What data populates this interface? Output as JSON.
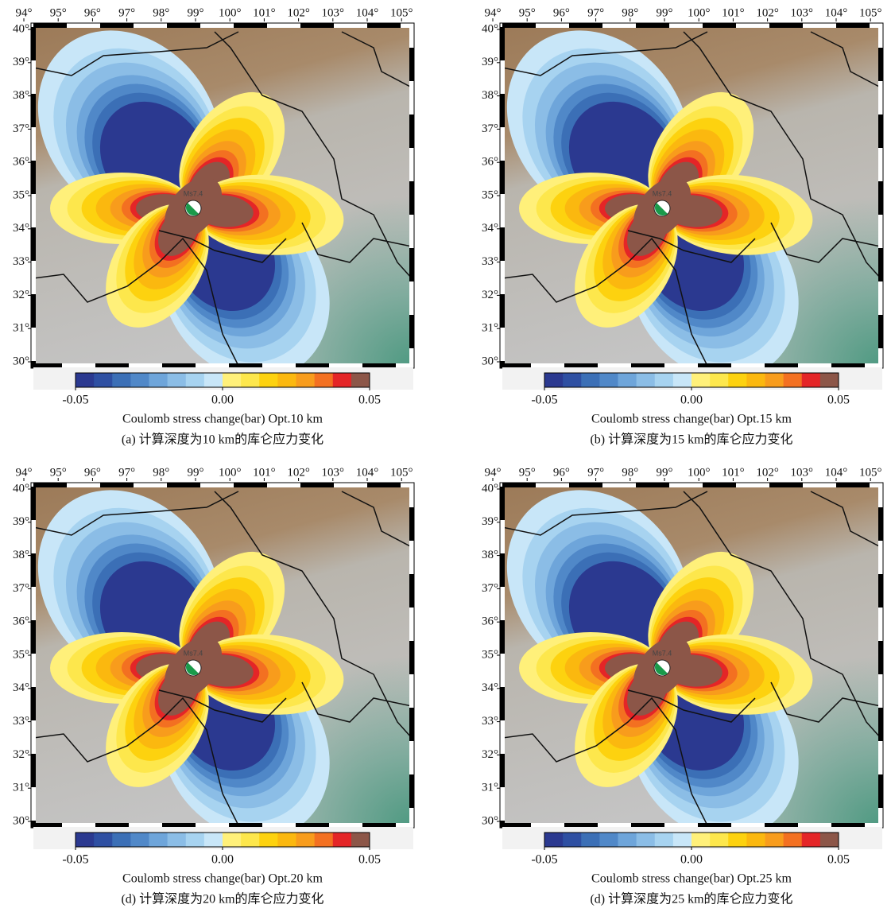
{
  "colors": [
    "#2b3990",
    "#2e4fa2",
    "#3b6fb6",
    "#5088c8",
    "#6ea5da",
    "#8bbde6",
    "#a7d3f0",
    "#c8e6f8",
    "#fff07a",
    "#fde74c",
    "#fdd20f",
    "#fbb80f",
    "#f89c1c",
    "#f37021",
    "#e42527",
    "#8c5648"
  ],
  "panels": [
    {
      "xticks": [
        {
          "value": 94,
          "label": "94°"
        },
        {
          "value": 95,
          "label": "95°"
        },
        {
          "value": 96,
          "label": "96°"
        },
        {
          "value": 97,
          "label": "97°"
        },
        {
          "value": 98,
          "label": "98°"
        },
        {
          "value": 99,
          "label": "99°"
        },
        {
          "value": 100,
          "label": "100°"
        },
        {
          "value": 101,
          "label": "101°"
        },
        {
          "value": 102,
          "label": "102°"
        },
        {
          "value": 103,
          "label": "103°"
        },
        {
          "value": 104,
          "label": "104°"
        },
        {
          "value": 105,
          "label": "105°"
        }
      ],
      "yticks": [
        {
          "value": 40,
          "label": "40°"
        },
        {
          "value": 39,
          "label": "39°"
        },
        {
          "value": 38,
          "label": "38°"
        },
        {
          "value": 37,
          "label": "37°"
        },
        {
          "value": 36,
          "label": "36°"
        },
        {
          "value": 35,
          "label": "35°"
        },
        {
          "value": 34,
          "label": "34°"
        },
        {
          "value": 33,
          "label": "33°"
        },
        {
          "value": 32,
          "label": "32°"
        },
        {
          "value": 31,
          "label": "31°"
        },
        {
          "value": 30,
          "label": "30°"
        }
      ],
      "event_label": "Ms7.4",
      "colorbar": {
        "clim": [
          -0.05,
          0.05
        ],
        "ticks": [
          -0.05,
          {
            "value": 0,
            "label": "0.00"
          },
          0.05
        ],
        "label": "Coulomb stress change(bar) Opt.10 km"
      },
      "caption": "(a) 计算深度为10 km的库仑应力变化"
    },
    {
      "xticks": [
        {
          "value": 94,
          "label": "94°"
        },
        {
          "value": 95,
          "label": "95°"
        },
        {
          "value": 96,
          "label": "96°"
        },
        {
          "value": 97,
          "label": "97°"
        },
        {
          "value": 98,
          "label": "98°"
        },
        {
          "value": 99,
          "label": "99°"
        },
        {
          "value": 100,
          "label": "100°"
        },
        {
          "value": 101,
          "label": "101°"
        },
        {
          "value": 102,
          "label": "102°"
        },
        {
          "value": 103,
          "label": "103°"
        },
        {
          "value": 104,
          "label": "104°"
        },
        {
          "value": 105,
          "label": "105°"
        }
      ],
      "yticks": [
        {
          "value": 40,
          "label": "40°"
        },
        {
          "value": 39,
          "label": "39°"
        },
        {
          "value": 38,
          "label": "38°"
        },
        {
          "value": 37,
          "label": "37°"
        },
        {
          "value": 36,
          "label": "36°"
        },
        {
          "value": 35,
          "label": "35°"
        },
        {
          "value": 34,
          "label": "34°"
        },
        {
          "value": 33,
          "label": "33°"
        },
        {
          "value": 32,
          "label": "32°"
        },
        {
          "value": 31,
          "label": "31°"
        },
        {
          "value": 30,
          "label": "30°"
        }
      ],
      "event_label": "Ms7.4",
      "colorbar": {
        "clim": [
          -0.05,
          0.05
        ],
        "ticks": [
          -0.05,
          {
            "value": 0,
            "label": "0.00"
          },
          0.05
        ],
        "label": "Coulomb stress change(bar) Opt.15 km"
      },
      "caption": "(b) 计算深度为15 km的库仑应力变化"
    },
    {
      "xticks": [
        {
          "value": 94,
          "label": "94°"
        },
        {
          "value": 95,
          "label": "95°"
        },
        {
          "value": 96,
          "label": "96°"
        },
        {
          "value": 97,
          "label": "97°"
        },
        {
          "value": 98,
          "label": "98°"
        },
        {
          "value": 99,
          "label": "99°"
        },
        {
          "value": 100,
          "label": "100°"
        },
        {
          "value": 101,
          "label": "101°"
        },
        {
          "value": 102,
          "label": "102°"
        },
        {
          "value": 103,
          "label": "103°"
        },
        {
          "value": 104,
          "label": "104°"
        },
        {
          "value": 105,
          "label": "105°"
        }
      ],
      "yticks": [
        {
          "value": 40,
          "label": "40°"
        },
        {
          "value": 39,
          "label": "39°"
        },
        {
          "value": 38,
          "label": "38°"
        },
        {
          "value": 37,
          "label": "37°"
        },
        {
          "value": 36,
          "label": "36°"
        },
        {
          "value": 35,
          "label": "35°"
        },
        {
          "value": 34,
          "label": "34°"
        },
        {
          "value": 33,
          "label": "33°"
        },
        {
          "value": 32,
          "label": "32°"
        },
        {
          "value": 31,
          "label": "31°"
        },
        {
          "value": 30,
          "label": "30°"
        }
      ],
      "event_label": "Ms7.4",
      "colorbar": {
        "clim": [
          -0.05,
          0.05
        ],
        "ticks": [
          -0.05,
          {
            "value": 0,
            "label": "0.00"
          },
          0.05
        ],
        "label": "Coulomb stress change(bar) Opt.20 km"
      },
      "caption": "(d) 计算深度为20 km的库仑应力变化"
    },
    {
      "xticks": [
        {
          "value": 94,
          "label": "94°"
        },
        {
          "value": 95,
          "label": "95°"
        },
        {
          "value": 96,
          "label": "96°"
        },
        {
          "value": 97,
          "label": "97°"
        },
        {
          "value": 98,
          "label": "98°"
        },
        {
          "value": 99,
          "label": "99°"
        },
        {
          "value": 100,
          "label": "100°"
        },
        {
          "value": 101,
          "label": "101°"
        },
        {
          "value": 102,
          "label": "102°"
        },
        {
          "value": 103,
          "label": "103°"
        },
        {
          "value": 104,
          "label": "104°"
        },
        {
          "value": 105,
          "label": "105°"
        }
      ],
      "yticks": [
        {
          "value": 40,
          "label": "40°"
        },
        {
          "value": 39,
          "label": "39°"
        },
        {
          "value": 38,
          "label": "38°"
        },
        {
          "value": 37,
          "label": "37°"
        },
        {
          "value": 36,
          "label": "36°"
        },
        {
          "value": 35,
          "label": "35°"
        },
        {
          "value": 34,
          "label": "34°"
        },
        {
          "value": 33,
          "label": "33°"
        },
        {
          "value": 32,
          "label": "32°"
        },
        {
          "value": 31,
          "label": "31°"
        },
        {
          "value": 30,
          "label": "30°"
        }
      ],
      "event_label": "Ms7.4",
      "colorbar": {
        "clim": [
          -0.05,
          0.05
        ],
        "ticks": [
          -0.05,
          {
            "value": 0,
            "label": "0.00"
          },
          0.05
        ],
        "label": "Coulomb stress change(bar) Opt.25 km"
      },
      "caption": "(d) 计算深度为25 km的库仑应力变化"
    }
  ]
}
